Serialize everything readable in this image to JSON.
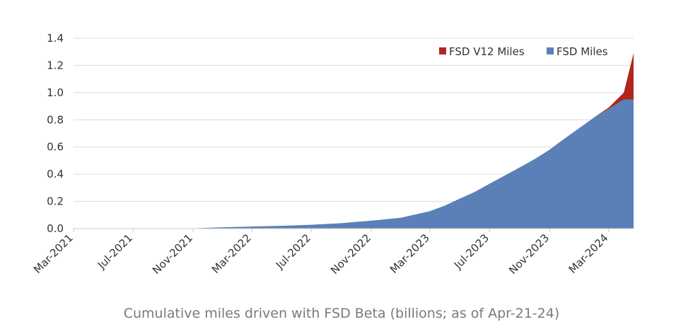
{
  "chart_data": {
    "type": "area",
    "stacked": true,
    "caption": "Cumulative miles driven with FSD Beta (billions; as of Apr-21-24)",
    "ylim": [
      0,
      1.4
    ],
    "yticks": [
      "0.0",
      "0.2",
      "0.4",
      "0.6",
      "0.8",
      "1.0",
      "1.2",
      "1.4"
    ],
    "xlim": [
      "2021-03",
      "2024-04-21"
    ],
    "xticks": [
      {
        "label": "Mar-2021",
        "date": "2021-03"
      },
      {
        "label": "Jul-2021",
        "date": "2021-07"
      },
      {
        "label": "Nov-2021",
        "date": "2021-11"
      },
      {
        "label": "Mar-2022",
        "date": "2022-03"
      },
      {
        "label": "Jul-2022",
        "date": "2022-07"
      },
      {
        "label": "Nov-2022",
        "date": "2022-11"
      },
      {
        "label": "Mar-2023",
        "date": "2023-03"
      },
      {
        "label": "Jul-2023",
        "date": "2023-07"
      },
      {
        "label": "Nov-2023",
        "date": "2023-11"
      },
      {
        "label": "Mar-2024",
        "date": "2024-03"
      }
    ],
    "grid": true,
    "legend_position": "top-right",
    "series": [
      {
        "name": "FSD Miles",
        "color": "#5b80b8",
        "points": [
          [
            "2021-03",
            0.0
          ],
          [
            "2021-11",
            0.002
          ],
          [
            "2022-01",
            0.01
          ],
          [
            "2022-03",
            0.015
          ],
          [
            "2022-05",
            0.02
          ],
          [
            "2022-07",
            0.028
          ],
          [
            "2022-09",
            0.04
          ],
          [
            "2022-11",
            0.058
          ],
          [
            "2023-01",
            0.08
          ],
          [
            "2023-03",
            0.128
          ],
          [
            "2023-04",
            0.17
          ],
          [
            "2023-05",
            0.22
          ],
          [
            "2023-06",
            0.27
          ],
          [
            "2023-07",
            0.33
          ],
          [
            "2023-08",
            0.39
          ],
          [
            "2023-09",
            0.45
          ],
          [
            "2023-10",
            0.51
          ],
          [
            "2023-11",
            0.58
          ],
          [
            "2023-12",
            0.66
          ],
          [
            "2024-01",
            0.74
          ],
          [
            "2024-02",
            0.82
          ],
          [
            "2024-03",
            0.88
          ],
          [
            "2024-04",
            0.95
          ],
          [
            "2024-04-21",
            0.95
          ]
        ]
      },
      {
        "name": "FSD V12 Miles",
        "color": "#b0251e",
        "points": [
          [
            "2024-02",
            0.0
          ],
          [
            "2024-03",
            0.01
          ],
          [
            "2024-04",
            0.05
          ],
          [
            "2024-04-21",
            0.34
          ]
        ]
      }
    ]
  }
}
